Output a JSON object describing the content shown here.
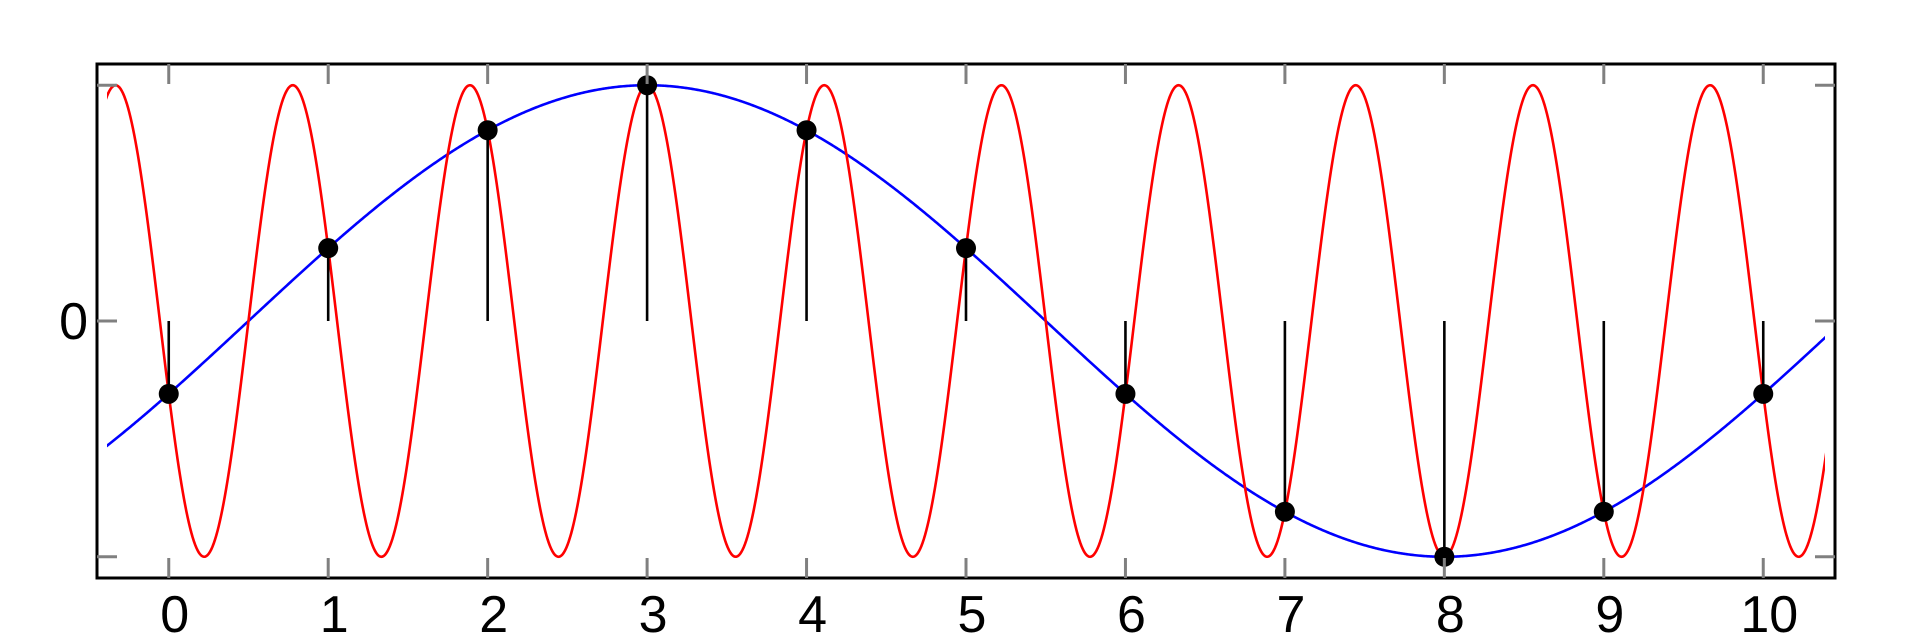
{
  "chart_data": {
    "type": "line",
    "title": "",
    "xlabel": "",
    "ylabel": "",
    "xlim": [
      -0.45,
      10.45
    ],
    "ylim": [
      -1.09,
      1.09
    ],
    "x_ticks": [
      0,
      1,
      2,
      3,
      4,
      5,
      6,
      7,
      8,
      9,
      10
    ],
    "x_tick_labels": [
      "0",
      "1",
      "2",
      "3",
      "4",
      "5",
      "6",
      "7",
      "8",
      "9",
      "10"
    ],
    "y_ticks": [
      -1,
      0,
      1
    ],
    "y_tick_labels": [
      "",
      "0",
      ""
    ],
    "grid": false,
    "legend": "none",
    "series": [
      {
        "kind": "function",
        "formula": "cos(2*pi*(x-3)/10)",
        "color": "#0000ff"
      },
      {
        "kind": "function",
        "formula": "cos(2*pi*(x-3)*9/10)",
        "color": "#ff0000"
      },
      {
        "kind": "stem",
        "color": "#000000",
        "x": [
          0,
          1,
          2,
          3,
          4,
          5,
          6,
          7,
          8,
          9,
          10
        ],
        "y": [
          -0.309,
          0.309,
          0.809,
          1,
          0.809,
          0.309,
          -0.309,
          -0.809,
          -1,
          -0.809,
          -0.309
        ]
      }
    ]
  }
}
